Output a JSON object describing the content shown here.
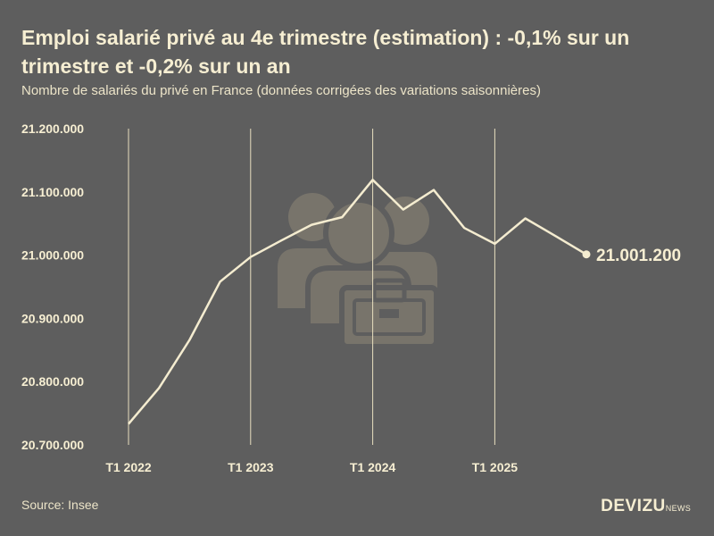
{
  "header": {
    "title": "Emploi salarié privé au 4e trimestre (estimation) : -0,1% sur un trimestre et -0,2% sur un an",
    "subtitle": "Nombre de salariés du privé en France (données corrigées des variations saisonnières)"
  },
  "footer": {
    "source": "Source: Insee",
    "brand_main": "DEVIZU",
    "brand_sub": "NEWS"
  },
  "watermark": {
    "icon": "employees-briefcase-icon"
  },
  "colors": {
    "background": "#5e5e5e",
    "line": "#f4ecd0",
    "watermark": "#7a766c"
  },
  "chart_data": {
    "type": "line",
    "title": "Emploi salarié privé au 4e trimestre (estimation) : -0,1% sur un trimestre et -0,2% sur un an",
    "subtitle": "Nombre de salariés du privé en France (données corrigées des variations saisonnières)",
    "x": [
      "T1 2022",
      "T2 2022",
      "T3 2022",
      "T4 2022",
      "T1 2023",
      "T2 2023",
      "T3 2023",
      "T4 2023",
      "T1 2024",
      "T2 2024",
      "T3 2024",
      "T4 2024",
      "T1 2025",
      "T2 2025",
      "T3 2025",
      "T4 2025"
    ],
    "series": [
      {
        "values": [
          20733000,
          20790000,
          20866000,
          20958000,
          20997000,
          21023000,
          21048000,
          21060000,
          21119000,
          21072000,
          21103000,
          21043000,
          21018000,
          21058000,
          21030000,
          21001200
        ]
      }
    ],
    "x_tick_labels": [
      "T1 2022",
      "T1 2023",
      "T1 2024",
      "T1 2025"
    ],
    "y_tick_labels": [
      "20.700.000",
      "20.800.000",
      "20.900.000",
      "21.000.000",
      "21.100.000",
      "21.200.000"
    ],
    "y_ticks": [
      20700000,
      20800000,
      20900000,
      21000000,
      21100000,
      21200000
    ],
    "ylim": [
      20700000,
      21200000
    ],
    "grid": "vertical lines at year starts",
    "end_label": "21.001.200",
    "xlabel": "",
    "ylabel": ""
  }
}
